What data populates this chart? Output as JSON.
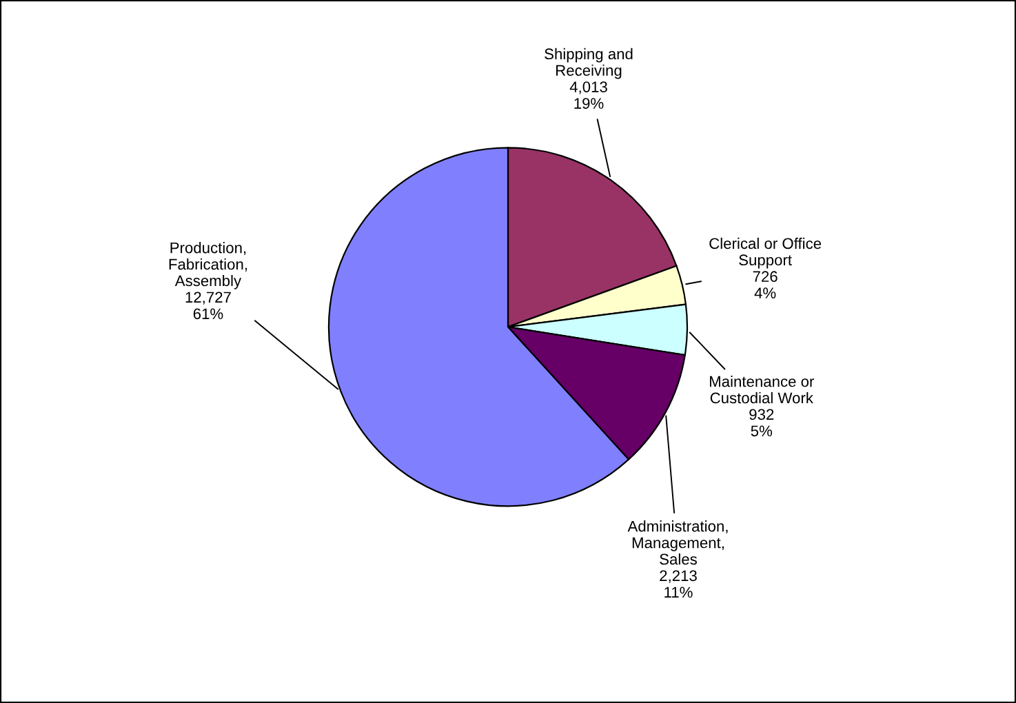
{
  "chart_data": {
    "type": "pie",
    "categories": [
      "Shipping and\nReceiving",
      "Clerical or Office\nSupport",
      "Maintenance or\nCustodial Work",
      "Administration,\nManagement,\nSales",
      "Production,\nFabrication,\nAssembly"
    ],
    "values": [
      4013,
      726,
      932,
      2213,
      12727
    ],
    "colors": [
      "#993366",
      "#ffffcc",
      "#ccffff",
      "#660066",
      "#8080ff"
    ],
    "value_labels": [
      "4,013\n19%",
      "726\n4%",
      "932\n5%",
      "2,213\n11%",
      "12,727\n61%"
    ],
    "legend": false
  }
}
